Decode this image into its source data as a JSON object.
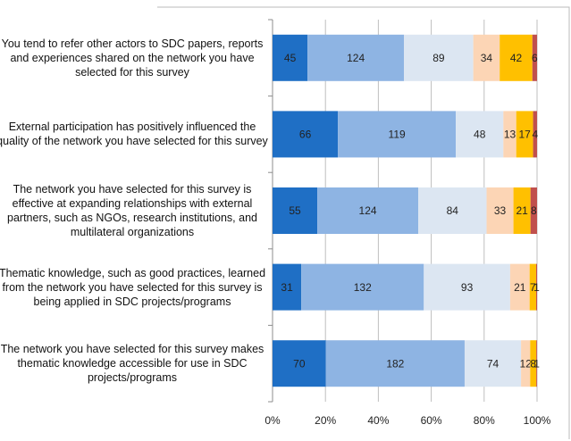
{
  "chart_data": {
    "type": "stacked-bar-100",
    "categories": [
      "You tend to refer other actors to SDC papers, reports and experiences shared on the network you have selected for this survey",
      "External participation has positively influenced the quality of the network you have selected for this survey",
      "The network you have selected for this survey is effective at expanding relationships with external partners, such as NGOs, research institutions, and multilateral organizations",
      "Thematic knowledge, such as good practices, learned from the network you have selected for this survey is being applied in SDC projects/programs",
      "The network you have selected for this survey makes thematic knowledge accessible for use in SDC projects/programs"
    ],
    "series": [
      {
        "color": "#1f6fc5",
        "values": [
          45,
          66,
          55,
          31,
          70
        ]
      },
      {
        "color": "#8eb4e3",
        "values": [
          124,
          119,
          124,
          132,
          182
        ]
      },
      {
        "color": "#dce6f2",
        "values": [
          89,
          48,
          84,
          93,
          74
        ]
      },
      {
        "color": "#fcd5b5",
        "values": [
          34,
          13,
          33,
          21,
          12
        ]
      },
      {
        "color": "#ffc000",
        "values": [
          42,
          17,
          21,
          7,
          8
        ]
      },
      {
        "color": "#c0504d",
        "values": [
          6,
          4,
          8,
          1,
          1
        ]
      }
    ],
    "xlim": [
      0,
      100
    ],
    "xticks": [
      {
        "value": 0,
        "label": "0%"
      },
      {
        "value": 20,
        "label": "20%"
      },
      {
        "value": 40,
        "label": "40%"
      },
      {
        "value": 60,
        "label": "60%"
      },
      {
        "value": 80,
        "label": "80%"
      },
      {
        "value": 100,
        "label": "100%"
      }
    ],
    "grid": true
  }
}
